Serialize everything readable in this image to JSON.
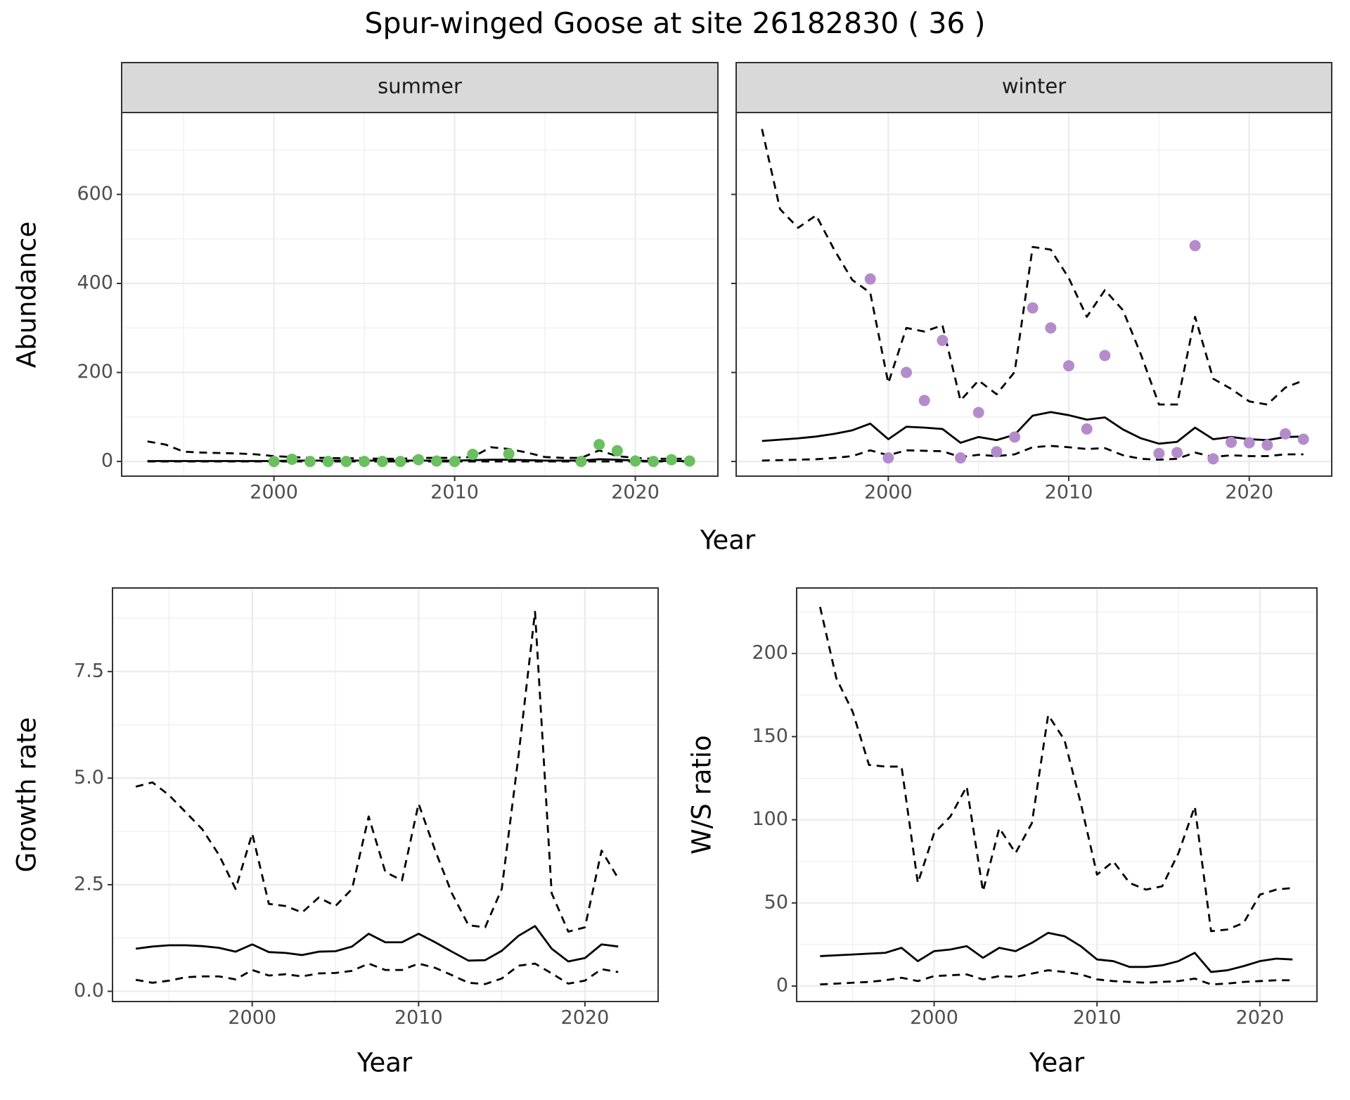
{
  "title": "Spur-winged Goose at site 26182830 ( 36 )",
  "chart_data": [
    {
      "type": "line",
      "xlabel": "Year",
      "ylabel": "Abundance",
      "x": [
        1993,
        1994,
        1995,
        1996,
        1997,
        1998,
        1999,
        2000,
        2001,
        2002,
        2003,
        2004,
        2005,
        2006,
        2007,
        2008,
        2009,
        2010,
        2011,
        2012,
        2013,
        2014,
        2015,
        2016,
        2017,
        2018,
        2019,
        2020,
        2021,
        2022,
        2023
      ],
      "xlim": [
        1991.57,
        2024.57
      ],
      "xticks": [
        2000,
        2010,
        2020
      ],
      "ylim": [
        -33,
        784
      ],
      "yticks": [
        0,
        200,
        400,
        600
      ],
      "grid": true,
      "facets": [
        {
          "strip": "summer",
          "series": [
            {
              "style": "dashed",
              "color": "#000000",
              "values": [
                45,
                38,
                22,
                20,
                19,
                18,
                16,
                12,
                10,
                8,
                8,
                7,
                7,
                6,
                6,
                8,
                8,
                8,
                10,
                32,
                28,
                20,
                10,
                8,
                8,
                25,
                12,
                8,
                6,
                6,
                6
              ]
            },
            {
              "style": "solid",
              "color": "#000000",
              "values": [
                1,
                1,
                1,
                1,
                1,
                1,
                1,
                1,
                2,
                2,
                2,
                2,
                2,
                2,
                2,
                2,
                2,
                2,
                3,
                4,
                4,
                3,
                2,
                2,
                2,
                5,
                4,
                2,
                1,
                1,
                1
              ]
            },
            {
              "style": "dashed",
              "color": "#000000",
              "values": [
                0,
                0,
                0,
                0,
                0,
                0,
                0,
                0,
                0,
                0,
                0,
                0,
                0,
                0,
                0,
                0,
                0,
                0,
                0,
                0,
                0,
                0,
                0,
                0,
                0,
                0,
                0,
                0,
                0,
                0,
                0
              ]
            },
            {
              "style": "points",
              "color": "#6abf5e",
              "values": [
                null,
                null,
                null,
                null,
                null,
                null,
                null,
                0,
                5,
                0,
                0,
                0,
                0,
                0,
                0,
                4,
                1,
                0,
                16,
                null,
                17,
                null,
                null,
                null,
                0,
                38,
                24,
                1,
                0,
                4,
                1
              ]
            }
          ]
        },
        {
          "strip": "winter",
          "series": [
            {
              "style": "dashed",
              "color": "#000000",
              "values": [
                747,
                567,
                525,
                553,
                476,
                408,
                379,
                176,
                300,
                292,
                306,
                137,
                182,
                151,
                201,
                482,
                476,
                412,
                325,
                385,
                340,
                240,
                128,
                128,
                325,
                186,
                163,
                135,
                128,
                166,
                182
              ]
            },
            {
              "style": "solid",
              "color": "#000000",
              "values": [
                46,
                49,
                52,
                56,
                62,
                70,
                85,
                50,
                78,
                76,
                73,
                42,
                55,
                48,
                60,
                103,
                111,
                104,
                94,
                99,
                72,
                52,
                40,
                44,
                76,
                50,
                55,
                50,
                48,
                55,
                56
              ]
            },
            {
              "style": "dashed",
              "color": "#000000",
              "values": [
                2,
                3,
                4,
                5,
                8,
                12,
                25,
                14,
                25,
                24,
                23,
                10,
                15,
                12,
                16,
                32,
                35,
                32,
                28,
                30,
                14,
                6,
                4,
                6,
                20,
                10,
                14,
                12,
                12,
                16,
                16
              ]
            },
            {
              "style": "points",
              "color": "#b48ccb",
              "values": [
                null,
                null,
                null,
                null,
                null,
                null,
                410,
                8,
                200,
                137,
                272,
                8,
                110,
                22,
                55,
                345,
                300,
                215,
                73,
                238,
                null,
                null,
                18,
                20,
                485,
                6,
                43,
                42,
                37,
                62,
                50
              ]
            }
          ]
        }
      ]
    },
    {
      "type": "line",
      "xlabel": "Year",
      "ylabel": "Growth rate",
      "x": [
        1993,
        1994,
        1995,
        1996,
        1997,
        1998,
        1999,
        2000,
        2001,
        2002,
        2003,
        2004,
        2005,
        2006,
        2007,
        2008,
        2009,
        2010,
        2011,
        2012,
        2013,
        2014,
        2015,
        2016,
        2017,
        2018,
        2019,
        2020,
        2021,
        2022
      ],
      "xlim": [
        1991.6,
        2024.4
      ],
      "xticks": [
        2000,
        2010,
        2020
      ],
      "ylim": [
        -0.24,
        9.46
      ],
      "yticks": [
        {
          "value": 0,
          "label": "0.0"
        },
        2.5,
        {
          "value": 5,
          "label": "5.0"
        },
        7.5
      ],
      "grid": true,
      "series": [
        {
          "style": "dashed",
          "color": "#000000",
          "values": [
            4.8,
            4.9,
            4.6,
            4.2,
            3.8,
            3.2,
            2.4,
            3.7,
            2.05,
            2.0,
            1.85,
            2.2,
            2.0,
            2.4,
            4.1,
            2.8,
            2.6,
            4.4,
            3.3,
            2.3,
            1.55,
            1.5,
            2.4,
            5.5,
            8.9,
            2.3,
            1.4,
            1.5,
            3.3,
            2.65
          ]
        },
        {
          "style": "solid",
          "color": "#000000",
          "values": [
            1.0,
            1.05,
            1.08,
            1.08,
            1.06,
            1.02,
            0.93,
            1.1,
            0.92,
            0.9,
            0.85,
            0.93,
            0.94,
            1.05,
            1.35,
            1.15,
            1.15,
            1.35,
            1.15,
            0.93,
            0.72,
            0.73,
            0.95,
            1.3,
            1.53,
            1.0,
            0.7,
            0.78,
            1.1,
            1.05
          ]
        },
        {
          "style": "dashed",
          "color": "#000000",
          "values": [
            0.27,
            0.2,
            0.25,
            0.33,
            0.35,
            0.35,
            0.28,
            0.5,
            0.37,
            0.4,
            0.35,
            0.42,
            0.43,
            0.48,
            0.65,
            0.5,
            0.5,
            0.65,
            0.55,
            0.38,
            0.2,
            0.17,
            0.3,
            0.6,
            0.65,
            0.42,
            0.18,
            0.25,
            0.52,
            0.45
          ]
        }
      ]
    },
    {
      "type": "line",
      "xlabel": "Year",
      "ylabel": "W/S ratio",
      "x": [
        1993,
        1994,
        1995,
        1996,
        1997,
        1998,
        1999,
        2000,
        2001,
        2002,
        2003,
        2004,
        2005,
        2006,
        2007,
        2008,
        2009,
        2010,
        2011,
        2012,
        2013,
        2014,
        2015,
        2016,
        2017,
        2018,
        2019,
        2020,
        2021,
        2022
      ],
      "xlim": [
        1991.56,
        2023.5
      ],
      "xticks": [
        2000,
        2010,
        2020
      ],
      "ylim": [
        -9.3,
        239.4
      ],
      "yticks": [
        0,
        50,
        100,
        150,
        200
      ],
      "grid": true,
      "series": [
        {
          "style": "dashed",
          "color": "#000000",
          "values": [
            228,
            185,
            165,
            133,
            132,
            132,
            62,
            92,
            102,
            120,
            57,
            95,
            80,
            98,
            163,
            148,
            110,
            67,
            75,
            62,
            58,
            60,
            80,
            108,
            33,
            34,
            38,
            55,
            58,
            59
          ]
        },
        {
          "style": "solid",
          "color": "#000000",
          "values": [
            18,
            18.5,
            19,
            19.5,
            20,
            23,
            15,
            21,
            22,
            24,
            17,
            23,
            21,
            26,
            32,
            30,
            24,
            16,
            15,
            11.5,
            11.5,
            12.5,
            15,
            20,
            8.5,
            9.5,
            12,
            15,
            16.5,
            16
          ]
        },
        {
          "style": "dashed",
          "color": "#000000",
          "values": [
            1,
            1.5,
            2,
            2.5,
            3.5,
            5,
            3,
            6,
            6.5,
            7,
            4,
            6,
            5.5,
            7.5,
            9.5,
            8.5,
            7,
            4,
            3,
            2.5,
            2,
            2.5,
            3,
            4.5,
            1,
            1.5,
            2.5,
            3,
            3.5,
            3.5
          ]
        }
      ]
    }
  ]
}
